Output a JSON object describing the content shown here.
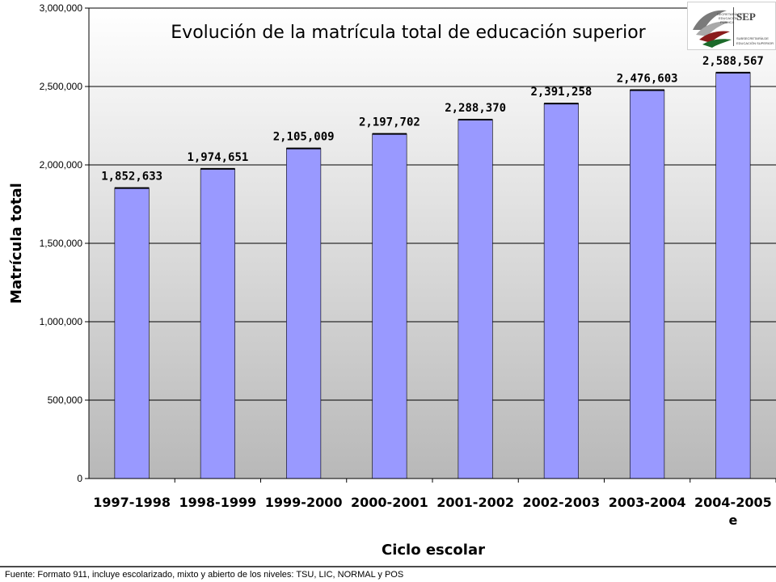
{
  "chart_data": {
    "type": "bar",
    "title": "Evolución de la matrícula total de educación superior",
    "xlabel": "Ciclo escolar",
    "ylabel": "Matrícula total",
    "categories": [
      [
        "1997-1998"
      ],
      [
        "1998-1999"
      ],
      [
        "1999-2000"
      ],
      [
        "2000-2001"
      ],
      [
        "2001-2002"
      ],
      [
        "2002-2003"
      ],
      [
        "2003-2004"
      ],
      [
        "2004-2005",
        "e"
      ]
    ],
    "values": [
      1852633,
      1974651,
      2105009,
      2197702,
      2288370,
      2391258,
      2476603,
      2588567
    ],
    "data_labels": [
      "1,852,633",
      "1,974,651",
      "2,105,009",
      "2,197,702",
      "2,288,370",
      "2,391,258",
      "2,476,603",
      "2,588,567"
    ],
    "ylim": [
      0,
      3000000
    ],
    "yticks": [
      0,
      500000,
      1000000,
      1500000,
      2000000,
      2500000,
      3000000
    ],
    "ytick_labels": [
      "0",
      "500,000",
      "1,000,000",
      "1,500,000",
      "2,000,000",
      "2,500,000",
      "3,000,000"
    ],
    "grid": true,
    "legend": "none",
    "colors": {
      "bar_fill": "#9999ff",
      "bar_top": "#000000",
      "plot_background": "#c0c0c0",
      "gridline": "#000000"
    }
  },
  "logo": {
    "lines": [
      "SECRETARÍA DE",
      "EDUCACIÓN",
      "PÚBLICA",
      "SEP",
      "SUBSECRETARÍA DE",
      "EDUCACIÓN SUPERIOR"
    ]
  },
  "footer": {
    "text": "Fuente: Formato 911, incluye escolarizado, mixto y abierto de los niveles: TSU, LIC, NORMAL y POS"
  }
}
